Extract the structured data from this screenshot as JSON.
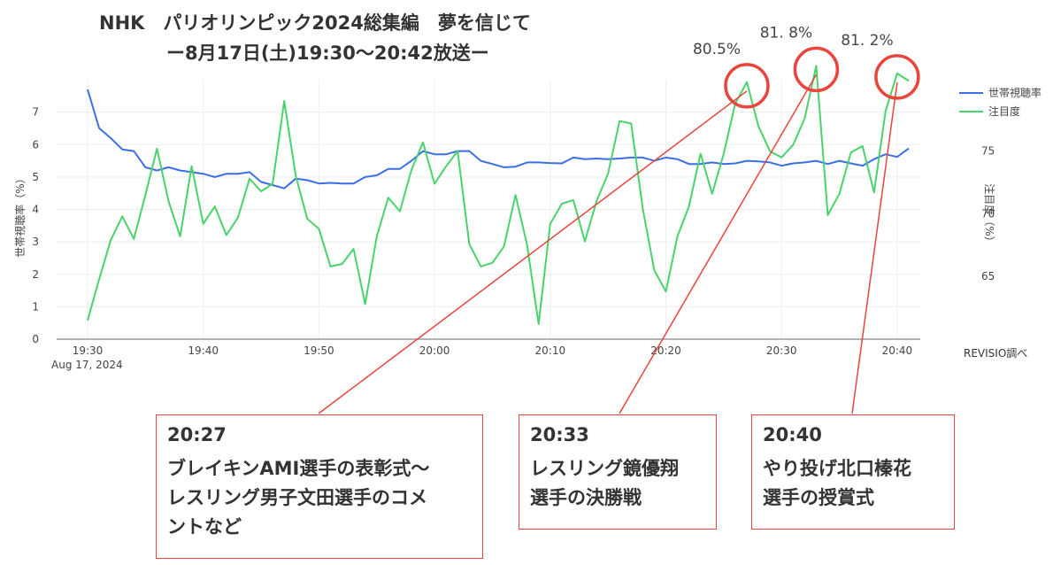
{
  "chart_data": {
    "type": "line",
    "title": [
      "NHK　パリオリンピック2024総集編　夢を信じて",
      "ー8月17日(土)19:30〜20:42放送ー"
    ],
    "x": [
      "19:30",
      "19:31",
      "19:32",
      "19:33",
      "19:34",
      "19:35",
      "19:36",
      "19:37",
      "19:38",
      "19:39",
      "19:40",
      "19:41",
      "19:42",
      "19:43",
      "19:44",
      "19:45",
      "19:46",
      "19:47",
      "19:48",
      "19:49",
      "19:50",
      "19:51",
      "19:52",
      "19:53",
      "19:54",
      "19:55",
      "19:56",
      "19:57",
      "19:58",
      "19:59",
      "20:00",
      "20:01",
      "20:02",
      "20:03",
      "20:04",
      "20:05",
      "20:06",
      "20:07",
      "20:08",
      "20:09",
      "20:10",
      "20:11",
      "20:12",
      "20:13",
      "20:14",
      "20:15",
      "20:16",
      "20:17",
      "20:18",
      "20:19",
      "20:20",
      "20:21",
      "20:22",
      "20:23",
      "20:24",
      "20:25",
      "20:26",
      "20:27",
      "20:28",
      "20:29",
      "20:30",
      "20:31",
      "20:32",
      "20:33",
      "20:34",
      "20:35",
      "20:36",
      "20:37",
      "20:38",
      "20:39",
      "20:40",
      "20:41"
    ],
    "xlabel": "",
    "x_tick_labels": [
      "19:30",
      "19:40",
      "19:50",
      "20:00",
      "20:10",
      "20:20",
      "20:30",
      "20:40"
    ],
    "x_date_label": "Aug 17, 2024",
    "series": [
      {
        "name": "世帯視聴率",
        "axis": "left",
        "color": "#3a6fe8",
        "values": [
          7.7,
          6.5,
          6.2,
          5.85,
          5.8,
          5.3,
          5.2,
          5.3,
          5.2,
          5.15,
          5.1,
          5.0,
          5.1,
          5.1,
          5.15,
          4.85,
          4.75,
          4.65,
          4.95,
          4.9,
          4.8,
          4.82,
          4.8,
          4.8,
          5.0,
          5.05,
          5.25,
          5.25,
          5.5,
          5.8,
          5.7,
          5.7,
          5.8,
          5.8,
          5.5,
          5.4,
          5.3,
          5.32,
          5.45,
          5.45,
          5.43,
          5.42,
          5.6,
          5.55,
          5.57,
          5.55,
          5.57,
          5.6,
          5.6,
          5.5,
          5.6,
          5.55,
          5.4,
          5.4,
          5.45,
          5.4,
          5.42,
          5.5,
          5.48,
          5.45,
          5.35,
          5.42,
          5.45,
          5.5,
          5.4,
          5.5,
          5.42,
          5.35,
          5.55,
          5.7,
          5.62,
          5.88
        ]
      },
      {
        "name": "注目度",
        "axis": "right",
        "color": "#49d36b",
        "values": [
          61.5,
          64.8,
          67.9,
          69.8,
          68.0,
          71.5,
          75.2,
          71.0,
          68.2,
          73.8,
          69.2,
          70.6,
          68.3,
          69.7,
          72.8,
          71.8,
          72.4,
          79.0,
          73.0,
          69.6,
          68.8,
          65.8,
          66.0,
          67.2,
          62.8,
          68.2,
          71.3,
          70.2,
          73.5,
          75.7,
          72.4,
          73.8,
          75.0,
          67.6,
          65.8,
          66.1,
          67.4,
          71.5,
          67.5,
          61.2,
          69.2,
          70.8,
          71.1,
          67.8,
          71.0,
          73.2,
          77.4,
          77.2,
          70.4,
          65.5,
          63.8,
          68.2,
          70.6,
          74.8,
          71.6,
          74.8,
          78.8,
          80.5,
          77.0,
          75.0,
          74.5,
          75.5,
          77.6,
          81.8,
          69.9,
          71.6,
          74.9,
          75.4,
          71.7,
          78.2,
          81.2,
          80.6
        ]
      }
    ],
    "yaxis_left": {
      "label": "世帯視聴率（%）",
      "range": [
        0,
        8
      ],
      "ticks": [
        0,
        1,
        2,
        3,
        4,
        5,
        6,
        7
      ]
    },
    "yaxis_right": {
      "label": "注目度（%）",
      "range": [
        60.0,
        80.7
      ],
      "ticks": [
        65,
        70,
        75
      ]
    },
    "grid": true,
    "legend": "top-right",
    "highlights": [
      {
        "x": "20:27",
        "label": "80.5%"
      },
      {
        "x": "20:33",
        "label": "81. 8%"
      },
      {
        "x": "20:40",
        "label": "81. 2%"
      }
    ],
    "callouts": [
      {
        "x": "20:27",
        "time": "20:27",
        "text": "ブレイキンAMI選手の表彰式〜\nレスリング男子文田選手のコメ\nントなど"
      },
      {
        "x": "20:33",
        "time": "20:33",
        "text": "レスリング鏡優翔\n選手の決勝戦"
      },
      {
        "x": "20:40",
        "time": "20:40",
        "text": "やり投げ北口榛花\n選手の授賞式"
      }
    ],
    "source": "REVISIO調べ",
    "colors": {
      "accent": "#e8453c",
      "grid": "#eeeeee",
      "axis_line": "#999999"
    }
  }
}
